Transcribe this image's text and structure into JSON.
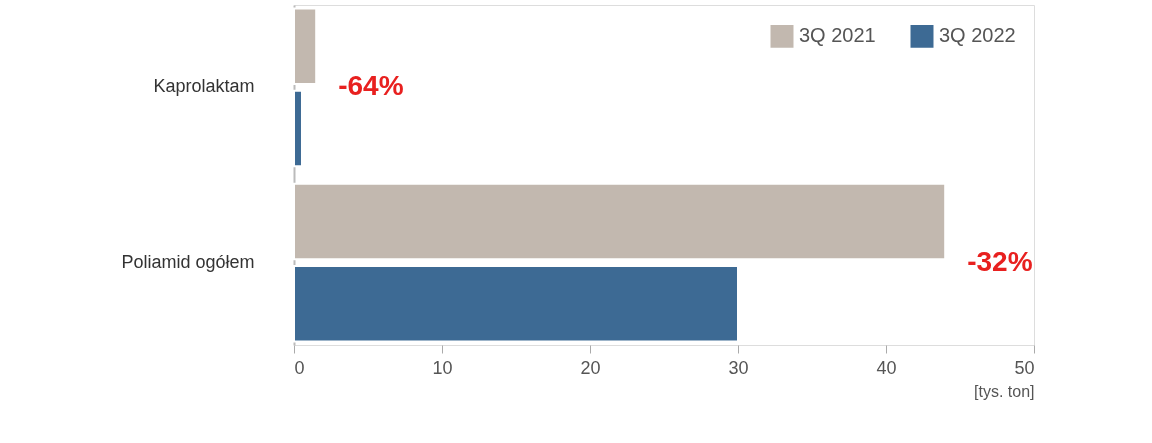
{
  "chart_data": {
    "type": "bar",
    "orientation": "horizontal",
    "categories": [
      "Kaprolaktam",
      "Poliamid ogółem"
    ],
    "series": [
      {
        "name": "3Q 2021",
        "color": "#c2b8af",
        "values": [
          1.5,
          44
        ]
      },
      {
        "name": "3Q 2022",
        "color": "#3d6a94",
        "values": [
          0.54,
          30
        ]
      }
    ],
    "xlim": [
      0,
      50
    ],
    "xticks": [
      0,
      10,
      20,
      30,
      40,
      50
    ],
    "xlabel": "[tys. ton]",
    "annotations": [
      "-64%",
      "-32%"
    ],
    "legend": "top right",
    "grid": false
  }
}
